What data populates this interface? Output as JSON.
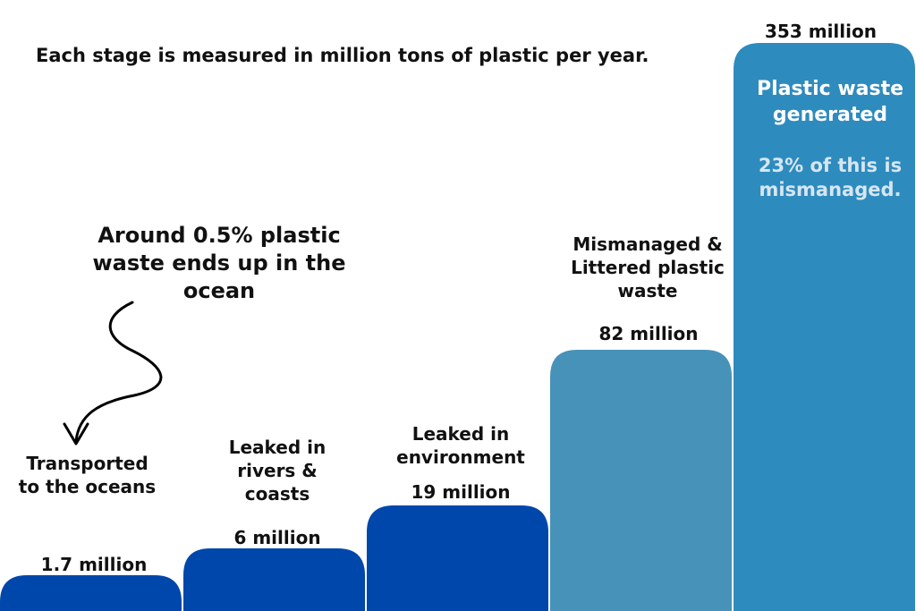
{
  "chart_data": {
    "type": "bar",
    "unit_note": "Each stage is measured in million tons of plastic per year.",
    "categories": [
      "Transported to the oceans",
      "Leaked in rivers & coasts",
      "Leaked in environment",
      "Mismanaged & Littered plastic waste",
      "Plastic waste generated"
    ],
    "values": [
      1.7,
      6,
      19,
      82,
      353
    ],
    "value_labels": [
      "1.7 million",
      "6 million",
      "19 million",
      "82 million",
      "353 million"
    ],
    "colors": [
      "#0047AB",
      "#0047AB",
      "#0047AB",
      "#4792B8",
      "#2E8BBE"
    ],
    "note_text": "23% of this is mismanaged.",
    "note_color": "#D6E6F0",
    "annotation": "Around 0.5% plastic waste ends up in the ocean"
  }
}
